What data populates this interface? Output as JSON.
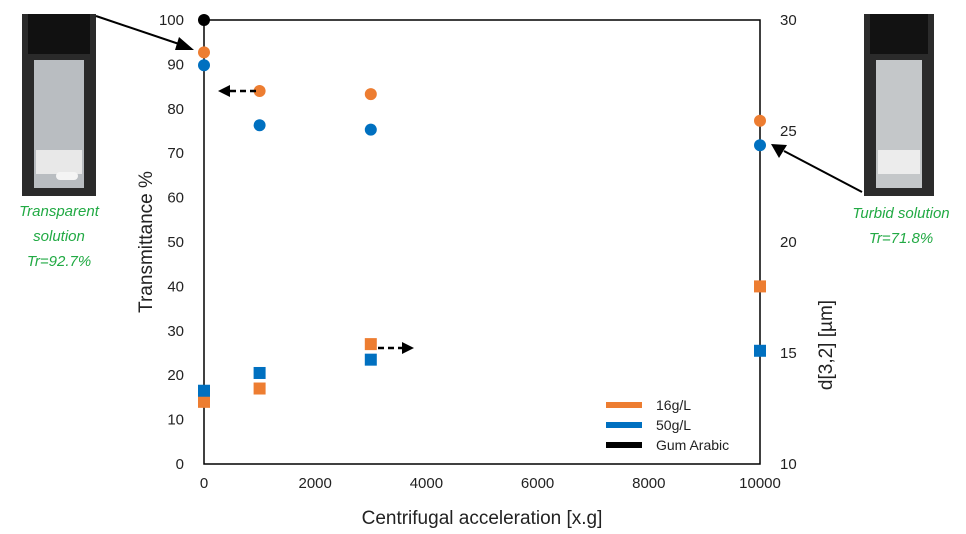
{
  "chart_data": {
    "type": "scatter",
    "xlabel": "Centrifugal acceleration [x.g]",
    "ylabel": "Transmittance %",
    "y2label": "d[3,2] [µm]",
    "xlim": [
      0,
      10000
    ],
    "ylim": [
      0,
      100
    ],
    "y2lim": [
      10,
      30
    ],
    "xticks": [
      0,
      2000,
      4000,
      6000,
      8000,
      10000
    ],
    "yticks": [
      0,
      10,
      20,
      30,
      40,
      50,
      60,
      70,
      80,
      90,
      100
    ],
    "y2ticks": [
      10,
      15,
      20,
      25,
      30
    ],
    "legend": {
      "placement": "bottom-right",
      "entries": [
        {
          "label": "16g/L",
          "color": "#ED7D31"
        },
        {
          "label": "50g/L",
          "color": "#0070C0"
        },
        {
          "label": "Gum Arabic",
          "color": "#000000"
        }
      ]
    },
    "series": [
      {
        "name": "16g/L",
        "axis": "left",
        "marker": "circle",
        "color": "#ED7D31",
        "x": [
          0,
          1000,
          3000,
          10000
        ],
        "y": [
          92.7,
          84,
          83.3,
          77.3
        ]
      },
      {
        "name": "50g/L",
        "axis": "left",
        "marker": "circle",
        "color": "#0070C0",
        "x": [
          0,
          1000,
          3000,
          10000
        ],
        "y": [
          89.8,
          76.3,
          75.3,
          71.8
        ]
      },
      {
        "name": "Gum Arabic",
        "axis": "left",
        "marker": "circle",
        "color": "#000000",
        "x": [
          0
        ],
        "y": [
          100
        ]
      },
      {
        "name": "16g/L",
        "axis": "right",
        "marker": "square",
        "color": "#ED7D31",
        "x": [
          0,
          1000,
          3000,
          10000
        ],
        "y": [
          12.8,
          13.4,
          15.4,
          18.0
        ]
      },
      {
        "name": "50g/L",
        "axis": "right",
        "marker": "square",
        "color": "#0070C0",
        "x": [
          0,
          1000,
          3000,
          10000
        ],
        "y": [
          13.3,
          14.1,
          14.7,
          15.1
        ]
      }
    ],
    "annotations": [
      {
        "lines": [
          "Transparent",
          "solution",
          "Tr=92.7%"
        ]
      },
      {
        "lines": [
          "Turbid solution",
          "Tr=71.8%"
        ]
      }
    ]
  }
}
